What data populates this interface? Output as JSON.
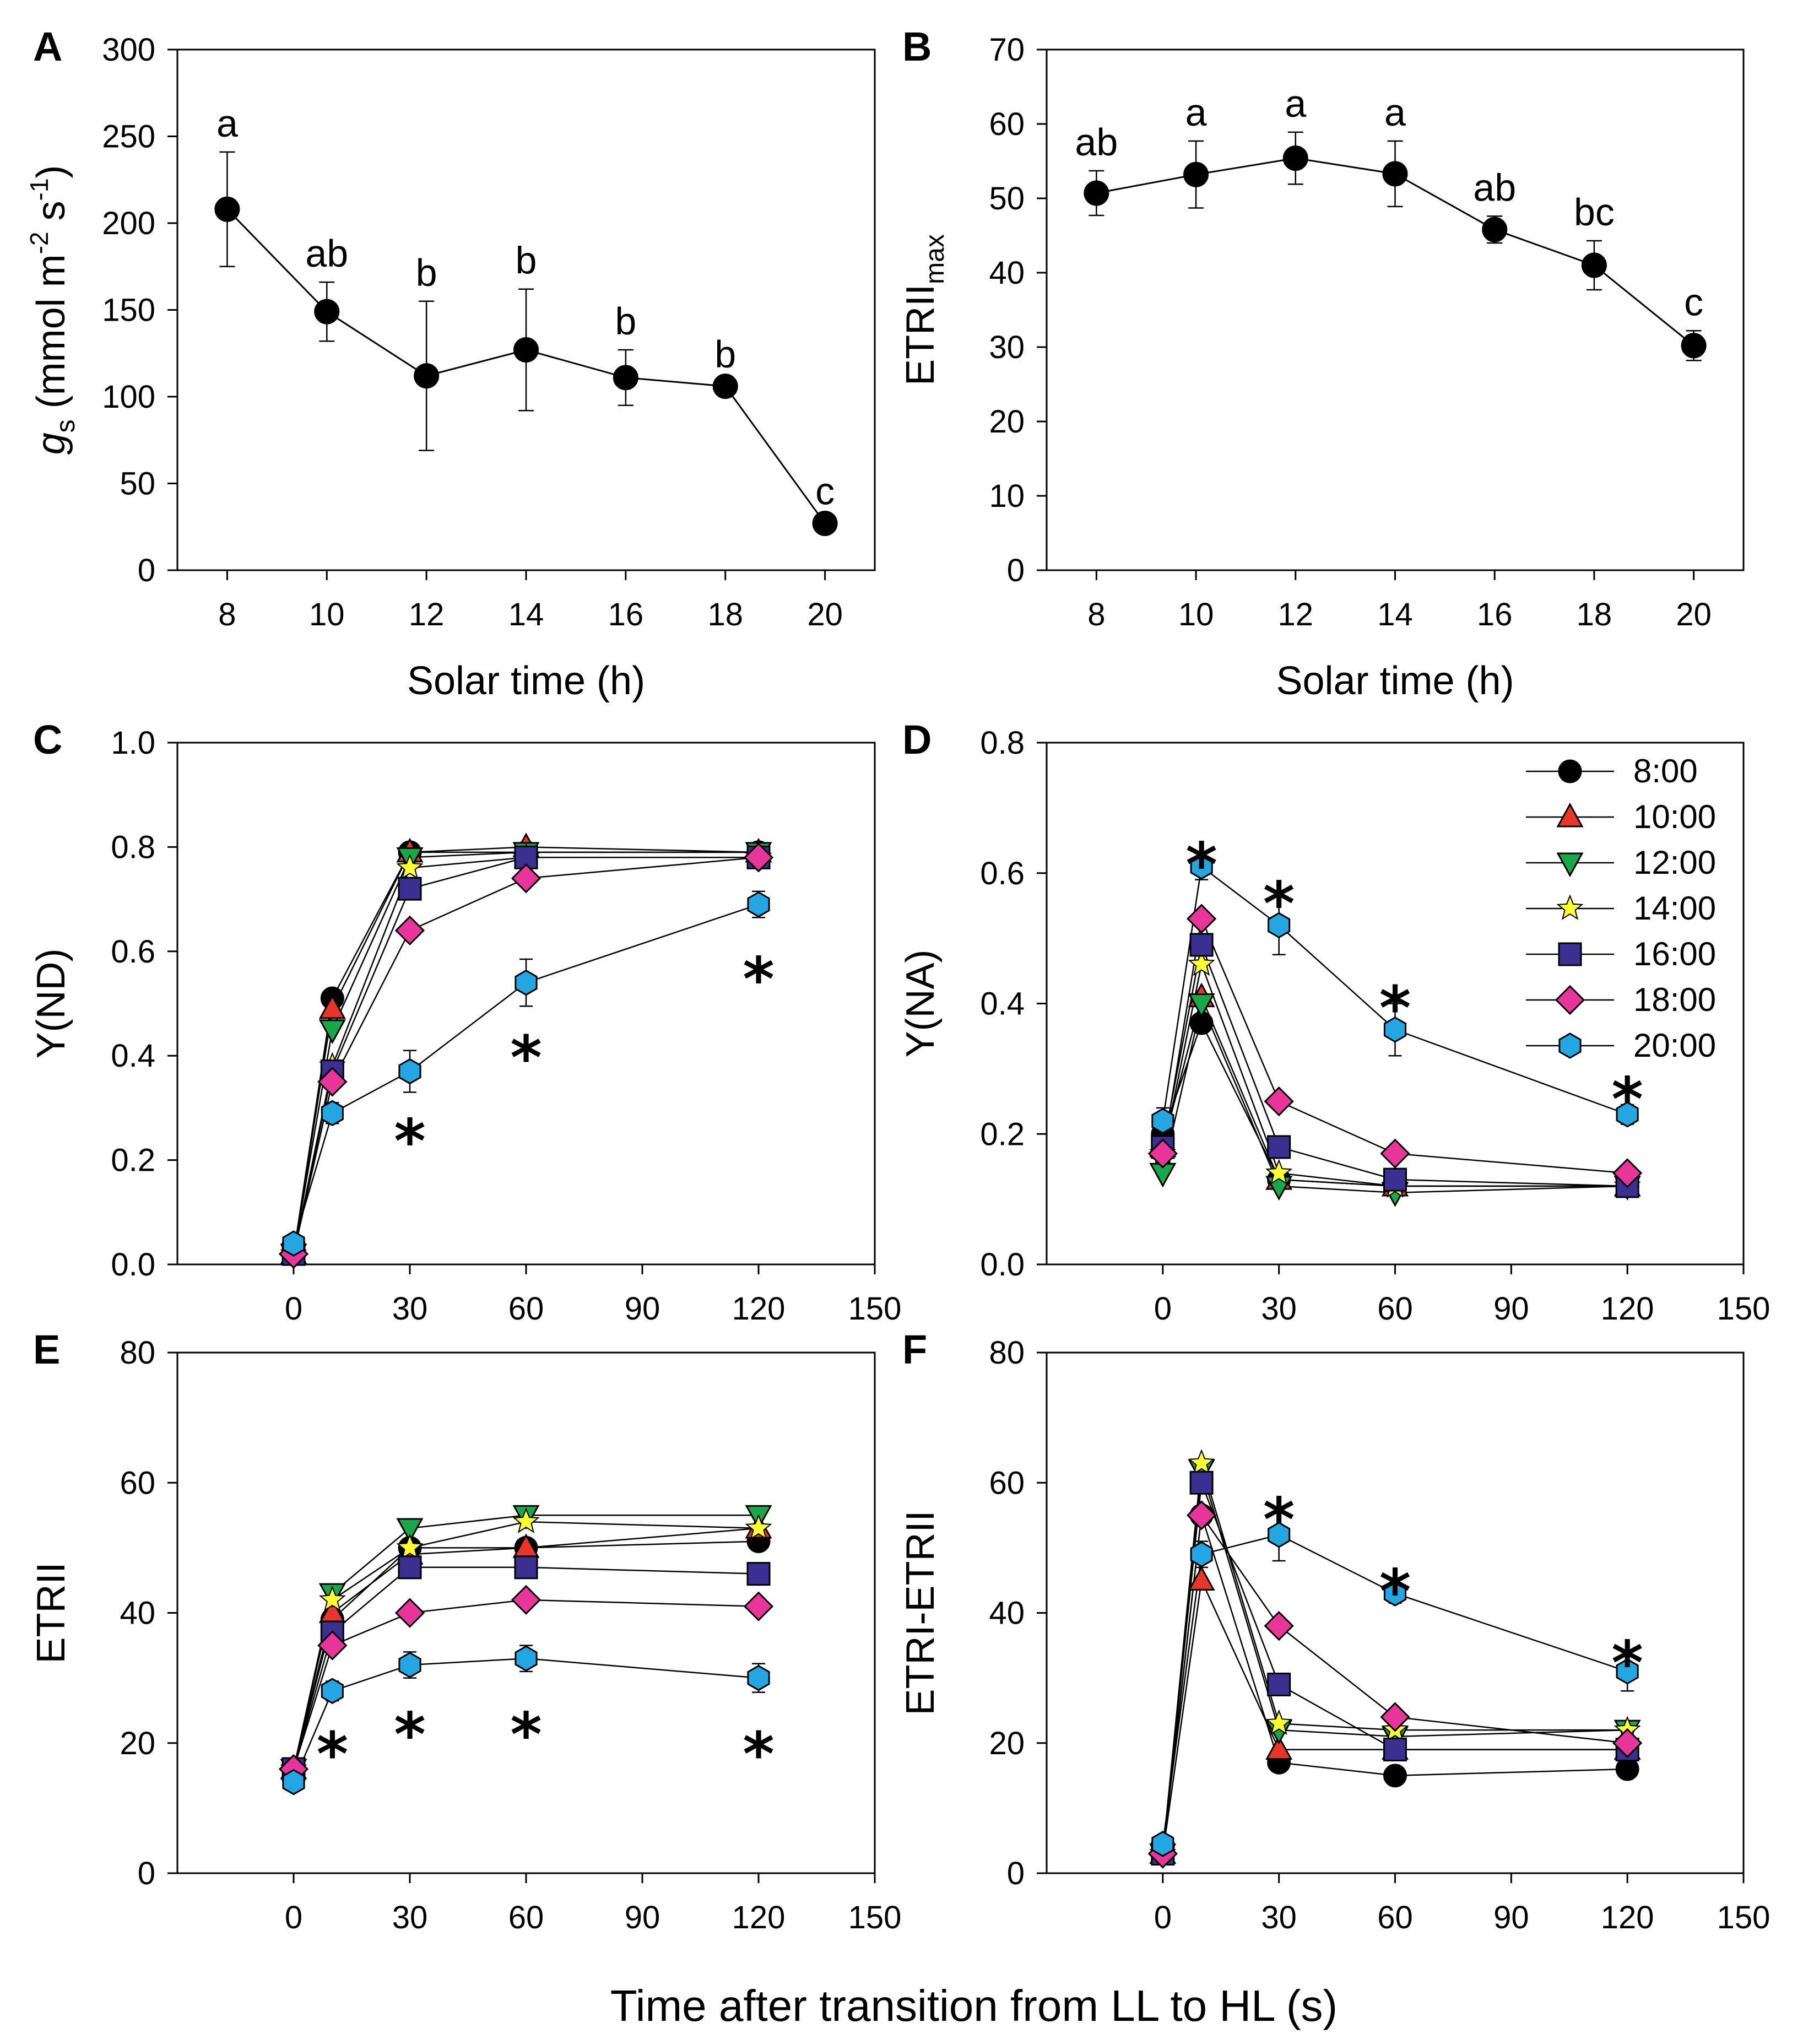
{
  "chart_data": [
    {
      "panel": "A",
      "type": "line",
      "xlabel": "Solar time (h)",
      "ylabel": {
        "main": "g",
        "sub": "s",
        "unit_pre": " (mmol m",
        "sup1": "-2",
        "mid": " s",
        "sup2": "-1",
        "close": ")"
      },
      "xlim": [
        7,
        21
      ],
      "ylim": [
        0,
        300
      ],
      "xticks": [
        "8",
        "10",
        "12",
        "14",
        "16",
        "18",
        "20"
      ],
      "yticks": [
        "0",
        "50",
        "100",
        "150",
        "200",
        "250",
        "300"
      ],
      "x": [
        8,
        10,
        12,
        14,
        16,
        18,
        20
      ],
      "y": [
        208,
        149,
        112,
        127,
        111,
        106,
        27
      ],
      "err": [
        33,
        17,
        43,
        35,
        16,
        2,
        2
      ],
      "letters": [
        "a",
        "ab",
        "b",
        "b",
        "b",
        "b",
        "c"
      ]
    },
    {
      "panel": "B",
      "type": "line",
      "xlabel": "Solar time (h)",
      "ylabel": {
        "main": "ETRII",
        "sub": "max"
      },
      "xlim": [
        7,
        21
      ],
      "ylim": [
        0,
        70
      ],
      "xticks": [
        "8",
        "10",
        "12",
        "14",
        "16",
        "18",
        "20"
      ],
      "yticks": [
        "0",
        "10",
        "20",
        "30",
        "40",
        "50",
        "60",
        "70"
      ],
      "x": [
        8,
        10,
        12,
        14,
        16,
        18,
        20
      ],
      "y": [
        50.7,
        53.2,
        55.4,
        53.3,
        45.8,
        41.0,
        30.2
      ],
      "err": [
        3.0,
        4.5,
        3.5,
        4.4,
        1.8,
        3.3,
        2.0
      ],
      "letters": [
        "ab",
        "a",
        "a",
        "a",
        "ab",
        "bc",
        "c"
      ]
    },
    {
      "panel": "C",
      "type": "line",
      "ylabel": {
        "main": "Y(ND)"
      },
      "xlim": [
        -30,
        150
      ],
      "ylim": [
        0,
        1.0
      ],
      "xticks": [
        "0",
        "30",
        "60",
        "90",
        "120",
        "150"
      ],
      "yticks": [
        "0.0",
        "0.2",
        "0.4",
        "0.6",
        "0.8",
        "1.0"
      ],
      "x": [
        0,
        10,
        30,
        60,
        120
      ],
      "series": [
        {
          "name": "8:00",
          "values": [
            0.02,
            0.51,
            0.79,
            0.79,
            0.79
          ]
        },
        {
          "name": "10:00",
          "values": [
            0.02,
            0.49,
            0.79,
            0.8,
            0.79
          ]
        },
        {
          "name": "12:00",
          "values": [
            0.02,
            0.45,
            0.78,
            0.79,
            0.79
          ]
        },
        {
          "name": "14:00",
          "values": [
            0.02,
            0.38,
            0.76,
            0.78,
            0.78
          ]
        },
        {
          "name": "16:00",
          "values": [
            0.02,
            0.37,
            0.72,
            0.78,
            0.78
          ]
        },
        {
          "name": "18:00",
          "values": [
            0.02,
            0.35,
            0.64,
            0.74,
            0.78
          ]
        },
        {
          "name": "20:00",
          "values": [
            0.04,
            0.29,
            0.37,
            0.54,
            0.69
          ]
        }
      ],
      "err20": [
        0.01,
        0.02,
        0.04,
        0.045,
        0.025
      ],
      "stars": [
        {
          "x": 30,
          "y": 0.27
        },
        {
          "x": 60,
          "y": 0.43
        },
        {
          "x": 120,
          "y": 0.58
        }
      ],
      "star_text": "*"
    },
    {
      "panel": "D",
      "type": "line",
      "ylabel": {
        "main": "Y(NA)"
      },
      "xlim": [
        -30,
        150
      ],
      "ylim": [
        0,
        0.8
      ],
      "xticks": [
        "0",
        "30",
        "60",
        "90",
        "120",
        "150"
      ],
      "yticks": [
        "0.0",
        "0.2",
        "0.4",
        "0.6",
        "0.8"
      ],
      "x": [
        0,
        10,
        30,
        60,
        120
      ],
      "series": [
        {
          "name": "8:00",
          "values": [
            0.2,
            0.37,
            0.13,
            0.12,
            0.12
          ]
        },
        {
          "name": "10:00",
          "values": [
            0.18,
            0.41,
            0.13,
            0.12,
            0.12
          ]
        },
        {
          "name": "12:00",
          "values": [
            0.14,
            0.4,
            0.12,
            0.11,
            0.12
          ]
        },
        {
          "name": "14:00",
          "values": [
            0.17,
            0.46,
            0.14,
            0.12,
            0.12
          ]
        },
        {
          "name": "16:00",
          "values": [
            0.18,
            0.49,
            0.18,
            0.13,
            0.12
          ]
        },
        {
          "name": "18:00",
          "values": [
            0.17,
            0.53,
            0.25,
            0.17,
            0.14
          ]
        },
        {
          "name": "20:00",
          "values": [
            0.22,
            0.61,
            0.52,
            0.36,
            0.23
          ]
        }
      ],
      "err20": [
        0.02,
        0.02,
        0.045,
        0.04,
        0.015
      ],
      "stars": [
        {
          "x": 10,
          "y": 0.64
        },
        {
          "x": 30,
          "y": 0.58
        },
        {
          "x": 60,
          "y": 0.42
        },
        {
          "x": 120,
          "y": 0.28
        }
      ],
      "star_text": "*",
      "legend": [
        "8:00",
        "10:00",
        "12:00",
        "14:00",
        "16:00",
        "18:00",
        "20:00"
      ]
    },
    {
      "panel": "E",
      "type": "line",
      "ylabel": {
        "main": "ETRII"
      },
      "xlim": [
        -30,
        150
      ],
      "ylim": [
        0,
        80
      ],
      "xticks": [
        "0",
        "30",
        "60",
        "90",
        "120",
        "150"
      ],
      "yticks": [
        "0",
        "20",
        "40",
        "60",
        "80"
      ],
      "x": [
        0,
        10,
        30,
        60,
        120
      ],
      "series": [
        {
          "name": "8:00",
          "values": [
            16,
            39,
            50,
            50,
            51
          ]
        },
        {
          "name": "10:00",
          "values": [
            16,
            40,
            49,
            50,
            53
          ]
        },
        {
          "name": "12:00",
          "values": [
            16,
            43,
            53,
            55,
            55
          ]
        },
        {
          "name": "14:00",
          "values": [
            16,
            42,
            50,
            54,
            53
          ]
        },
        {
          "name": "16:00",
          "values": [
            16,
            37,
            47,
            47,
            46
          ]
        },
        {
          "name": "18:00",
          "values": [
            16,
            35,
            40,
            42,
            41
          ]
        },
        {
          "name": "20:00",
          "values": [
            14,
            28,
            32,
            33,
            30
          ]
        }
      ],
      "err20": [
        1,
        1.5,
        2,
        2,
        2.2
      ],
      "stars": [
        {
          "x": 10,
          "y": 21
        },
        {
          "x": 30,
          "y": 24
        },
        {
          "x": 60,
          "y": 24
        },
        {
          "x": 120,
          "y": 21
        }
      ],
      "star_text": "*"
    },
    {
      "panel": "F",
      "type": "line",
      "ylabel": {
        "main": "ETRI-ETRII"
      },
      "xlim": [
        -30,
        150
      ],
      "ylim": [
        0,
        80
      ],
      "xticks": [
        "0",
        "30",
        "60",
        "90",
        "120",
        "150"
      ],
      "yticks": [
        "0",
        "20",
        "40",
        "60",
        "80"
      ],
      "x": [
        0,
        10,
        30,
        60,
        120
      ],
      "series": [
        {
          "name": "8:00",
          "values": [
            3,
            55,
            17,
            15,
            16
          ]
        },
        {
          "name": "10:00",
          "values": [
            3,
            45,
            19,
            19,
            19
          ]
        },
        {
          "name": "12:00",
          "values": [
            3,
            62,
            22,
            21,
            22
          ]
        },
        {
          "name": "14:00",
          "values": [
            3,
            63,
            23,
            22,
            22
          ]
        },
        {
          "name": "16:00",
          "values": [
            3,
            60,
            29,
            19,
            19
          ]
        },
        {
          "name": "18:00",
          "values": [
            3,
            55,
            38,
            24,
            20
          ]
        },
        {
          "name": "20:00",
          "values": [
            4.5,
            49,
            52,
            43,
            31
          ]
        }
      ],
      "err20": [
        1,
        2,
        4,
        1.5,
        3
      ],
      "stars": [
        {
          "x": 30,
          "y": 57
        },
        {
          "x": 60,
          "y": 46
        },
        {
          "x": 120,
          "y": 35
        }
      ],
      "star_text": "*"
    }
  ],
  "common_xlabel": "Time after transition from LL to HL (s)",
  "series_style": {
    "8:00": {
      "marker": "circle",
      "color": "#000000"
    },
    "10:00": {
      "marker": "triangle-up",
      "color": "#e8362a"
    },
    "12:00": {
      "marker": "triangle-down",
      "color": "#1aa64a"
    },
    "14:00": {
      "marker": "star",
      "color": "#ffff33"
    },
    "16:00": {
      "marker": "square",
      "color": "#3b2f91"
    },
    "18:00": {
      "marker": "diamond",
      "color": "#e8359a"
    },
    "20:00": {
      "marker": "hexagon",
      "color": "#24a6e3"
    }
  }
}
